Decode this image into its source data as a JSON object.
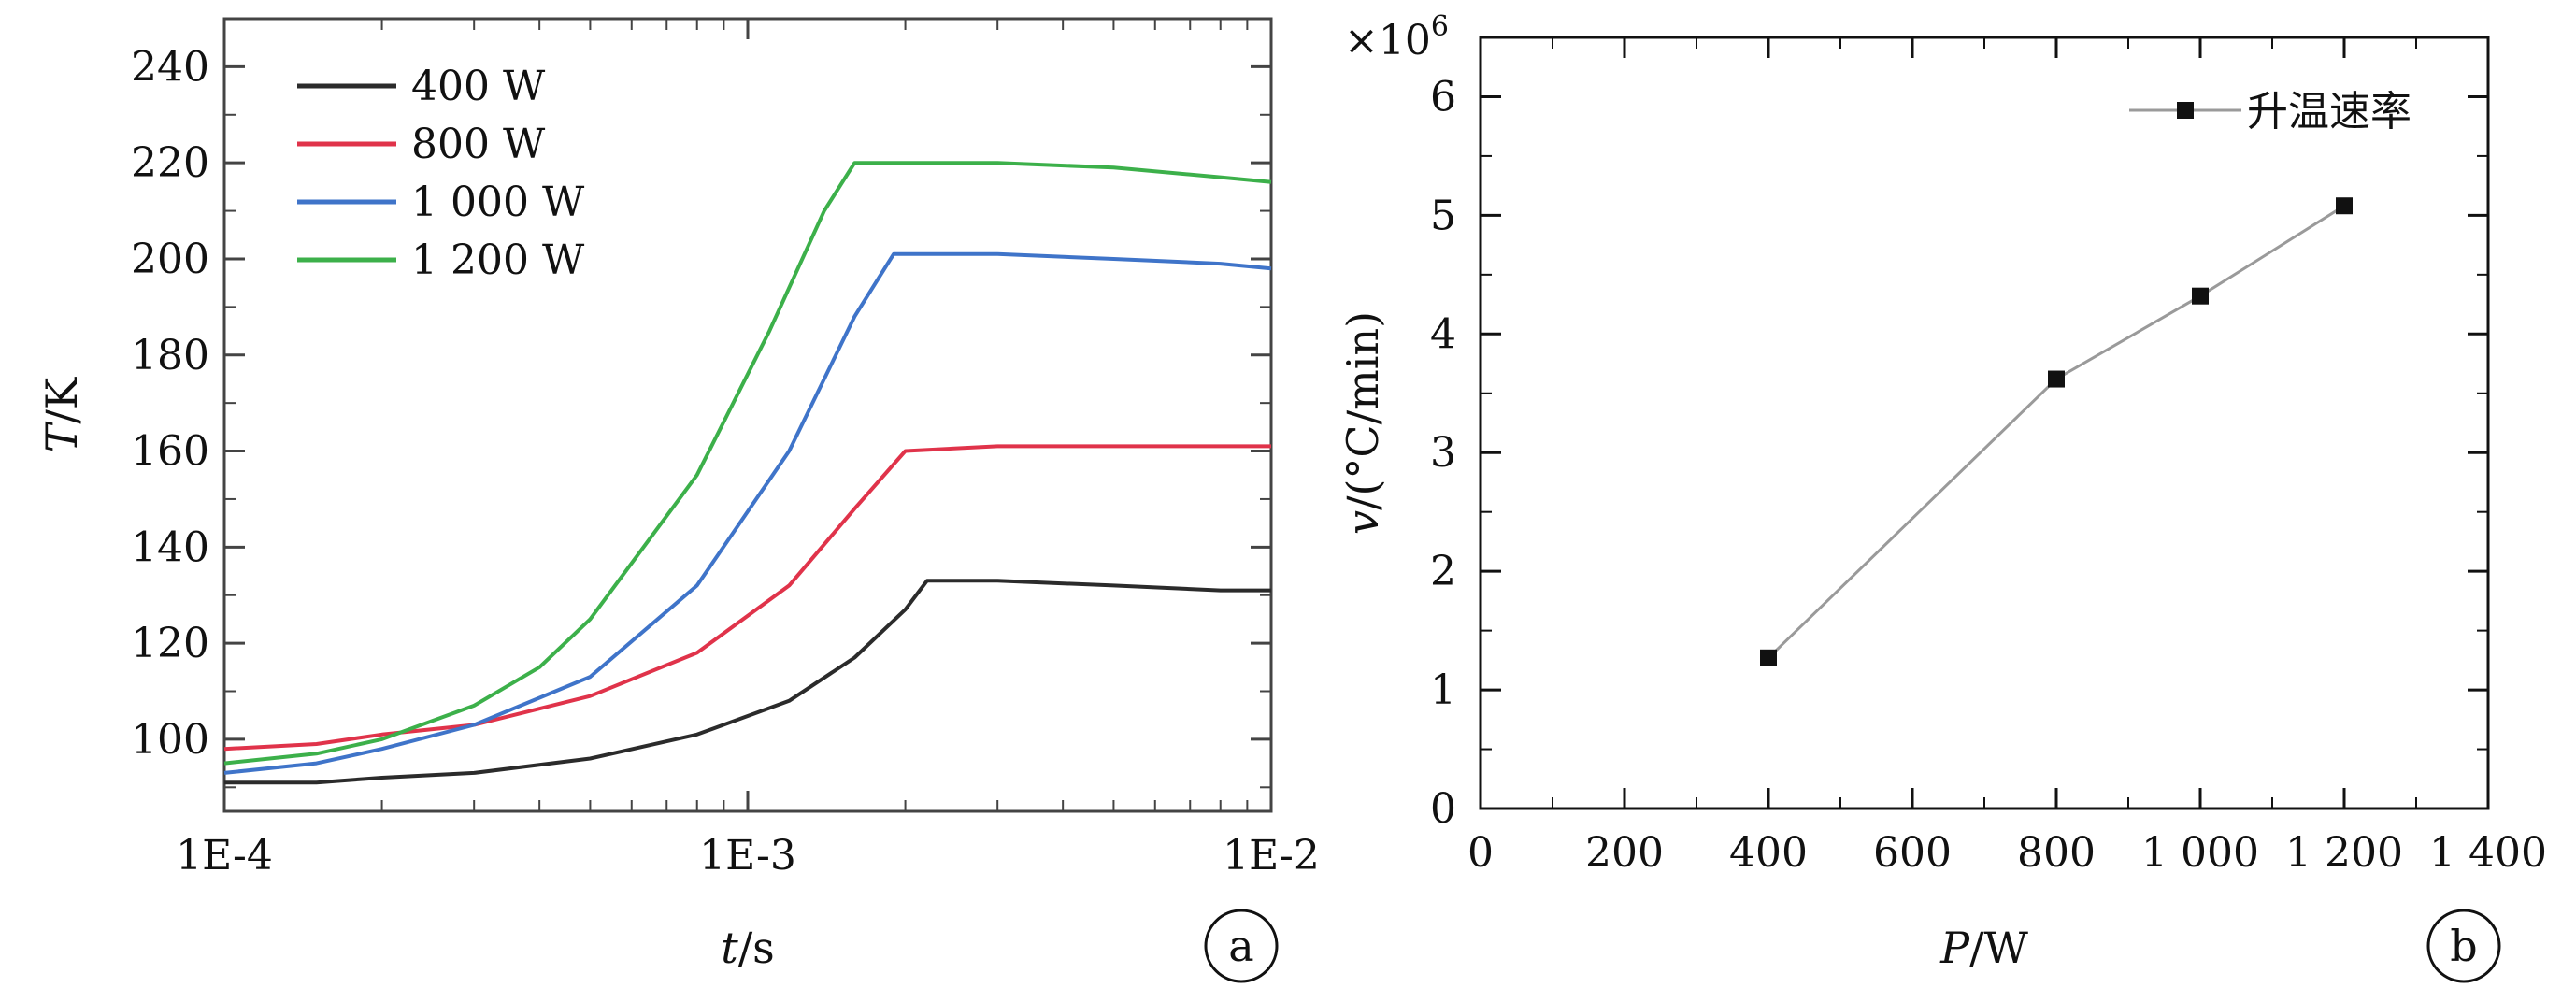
{
  "chart_data": [
    {
      "type": "line",
      "panel_label": "a",
      "xlabel_var": "t",
      "xlabel_unit": "/s",
      "ylabel_var": "T",
      "ylabel_unit": "/K",
      "xscale": "log",
      "xlim": [
        0.0001,
        0.01
      ],
      "ylim": [
        85,
        250
      ],
      "xticks": [
        {
          "value": 0.0001,
          "label": "1E-4"
        },
        {
          "value": 0.001,
          "label": "1E-3"
        },
        {
          "value": 0.01,
          "label": "1E-2"
        }
      ],
      "yticks": [
        100,
        120,
        140,
        160,
        180,
        200,
        220,
        240
      ],
      "legend_position": "top-left",
      "series": [
        {
          "name": "400 W",
          "color": "#2b2b2b",
          "x": [
            0.0001,
            0.00015,
            0.0002,
            0.0003,
            0.0005,
            0.0008,
            0.0012,
            0.0016,
            0.002,
            0.0022,
            0.003,
            0.005,
            0.008,
            0.01
          ],
          "y": [
            91,
            91,
            92,
            93,
            96,
            101,
            108,
            117,
            127,
            133,
            133,
            132,
            131,
            131
          ]
        },
        {
          "name": "800 W",
          "color": "#e0334a",
          "x": [
            0.0001,
            0.00015,
            0.0002,
            0.0003,
            0.0005,
            0.0008,
            0.0012,
            0.0016,
            0.002,
            0.003,
            0.005,
            0.008,
            0.01
          ],
          "y": [
            98,
            99,
            101,
            103,
            109,
            118,
            132,
            148,
            160,
            161,
            161,
            161,
            161
          ]
        },
        {
          "name": "1 000 W",
          "color": "#3f74c9",
          "x": [
            0.0001,
            0.00015,
            0.0002,
            0.0003,
            0.0005,
            0.0008,
            0.0012,
            0.0016,
            0.0019,
            0.003,
            0.005,
            0.008,
            0.01
          ],
          "y": [
            93,
            95,
            98,
            103,
            113,
            132,
            160,
            188,
            201,
            201,
            200,
            199,
            198
          ]
        },
        {
          "name": "1 200 W",
          "color": "#3cb04a",
          "x": [
            0.0001,
            0.00015,
            0.0002,
            0.0003,
            0.0004,
            0.0005,
            0.0008,
            0.0011,
            0.0014,
            0.0016,
            0.003,
            0.005,
            0.008,
            0.01
          ],
          "y": [
            95,
            97,
            100,
            107,
            115,
            125,
            155,
            185,
            210,
            220,
            220,
            219,
            217,
            216
          ]
        }
      ]
    },
    {
      "type": "line",
      "panel_label": "b",
      "xlabel_var": "P",
      "xlabel_unit": "/W",
      "ylabel_var": "v",
      "ylabel_unit": "/(°C/min)",
      "multiplier": "×10",
      "multiplier_exp": "6",
      "xlim": [
        0,
        1400
      ],
      "ylim": [
        0,
        6.5
      ],
      "xticks": [
        {
          "value": 0,
          "label": "0"
        },
        {
          "value": 200,
          "label": "200"
        },
        {
          "value": 400,
          "label": "400"
        },
        {
          "value": 600,
          "label": "600"
        },
        {
          "value": 800,
          "label": "800"
        },
        {
          "value": 1000,
          "label": "1 000"
        },
        {
          "value": 1200,
          "label": "1 200"
        },
        {
          "value": 1400,
          "label": "1 400"
        }
      ],
      "yticks": [
        0,
        1,
        2,
        3,
        4,
        5,
        6
      ],
      "legend_position": "top-right",
      "series": [
        {
          "name": "升温速率",
          "color": "#111111",
          "line_color": "#9a9a9a",
          "x": [
            400,
            800,
            1000,
            1200
          ],
          "y": [
            1.27,
            3.62,
            4.32,
            5.08
          ]
        }
      ]
    }
  ]
}
